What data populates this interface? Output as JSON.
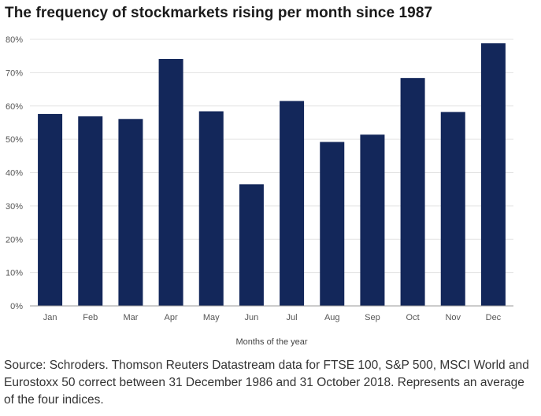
{
  "title": "The frequency of stockmarkets rising per month since 1987",
  "source": "Source: Schroders. Thomson Reuters Datastream data for FTSE 100, S&P 500, MSCI World and Eurostoxx 50 correct between 31 December 1986 and 31 October 2018. Represents an average of the four indices.",
  "colors": {
    "bar": "#13275a",
    "grid": "#e3e3e3",
    "axis": "#9a9a9a"
  },
  "chart_data": {
    "type": "bar",
    "title": "The frequency of stockmarkets rising per month since 1987",
    "xlabel": "Months of the year",
    "ylabel": "",
    "categories": [
      "Jan",
      "Feb",
      "Mar",
      "Apr",
      "May",
      "Jun",
      "Jul",
      "Aug",
      "Sep",
      "Oct",
      "Nov",
      "Dec"
    ],
    "values": [
      57.6,
      56.9,
      56.1,
      74.1,
      58.4,
      36.5,
      61.5,
      49.2,
      51.4,
      68.4,
      58.2,
      78.8
    ],
    "ylim": [
      0,
      80
    ],
    "yticks": [
      "0%",
      "10%",
      "20%",
      "30%",
      "40%",
      "50%",
      "60%",
      "70%",
      "80%"
    ],
    "grid": true,
    "legend": "none"
  }
}
